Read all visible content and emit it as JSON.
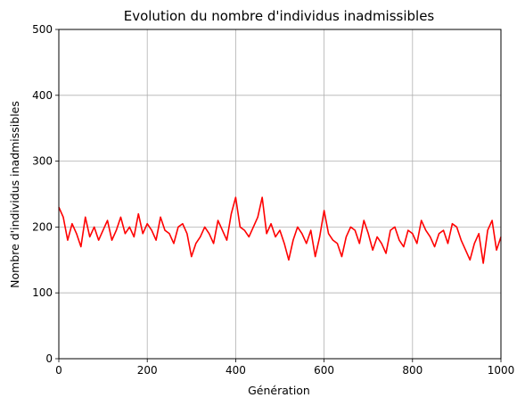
{
  "chart_data": {
    "type": "line",
    "title": "Evolution du nombre d'individus inadmissibles",
    "xlabel": "Génération",
    "ylabel": "Nombre d'individus inadmissibles",
    "xlim": [
      0,
      1000
    ],
    "ylim": [
      0,
      500
    ],
    "xticks": [
      "0",
      "200",
      "400",
      "600",
      "800",
      "1000"
    ],
    "yticks": [
      "0",
      "100",
      "200",
      "300",
      "400",
      "500"
    ],
    "grid": true,
    "series": [
      {
        "color": "#ff0000",
        "x": [
          0,
          10,
          20,
          30,
          40,
          50,
          60,
          70,
          80,
          90,
          100,
          110,
          120,
          130,
          140,
          150,
          160,
          170,
          180,
          190,
          200,
          210,
          220,
          230,
          240,
          250,
          260,
          270,
          280,
          290,
          300,
          310,
          320,
          330,
          340,
          350,
          360,
          370,
          380,
          390,
          400,
          410,
          420,
          430,
          440,
          450,
          460,
          470,
          480,
          490,
          500,
          510,
          520,
          530,
          540,
          550,
          560,
          570,
          580,
          590,
          600,
          610,
          620,
          630,
          640,
          650,
          660,
          670,
          680,
          690,
          700,
          710,
          720,
          730,
          740,
          750,
          760,
          770,
          780,
          790,
          800,
          810,
          820,
          830,
          840,
          850,
          860,
          870,
          880,
          890,
          900,
          910,
          920,
          930,
          940,
          950,
          960,
          970,
          980,
          990,
          1000
        ],
        "y": [
          230,
          215,
          180,
          205,
          190,
          170,
          215,
          185,
          200,
          180,
          195,
          210,
          180,
          195,
          215,
          190,
          200,
          185,
          220,
          190,
          205,
          195,
          180,
          215,
          195,
          190,
          175,
          200,
          205,
          190,
          155,
          175,
          185,
          200,
          190,
          175,
          210,
          195,
          180,
          220,
          245,
          200,
          195,
          185,
          200,
          215,
          245,
          190,
          205,
          185,
          195,
          175,
          150,
          180,
          200,
          190,
          175,
          195,
          155,
          185,
          225,
          190,
          180,
          175,
          155,
          185,
          200,
          195,
          175,
          210,
          190,
          165,
          185,
          175,
          160,
          195,
          200,
          180,
          170,
          195,
          190,
          175,
          210,
          195,
          185,
          170,
          190,
          195,
          175,
          205,
          200,
          180,
          165,
          150,
          175,
          190,
          145,
          195,
          210,
          165,
          185
        ]
      }
    ]
  }
}
